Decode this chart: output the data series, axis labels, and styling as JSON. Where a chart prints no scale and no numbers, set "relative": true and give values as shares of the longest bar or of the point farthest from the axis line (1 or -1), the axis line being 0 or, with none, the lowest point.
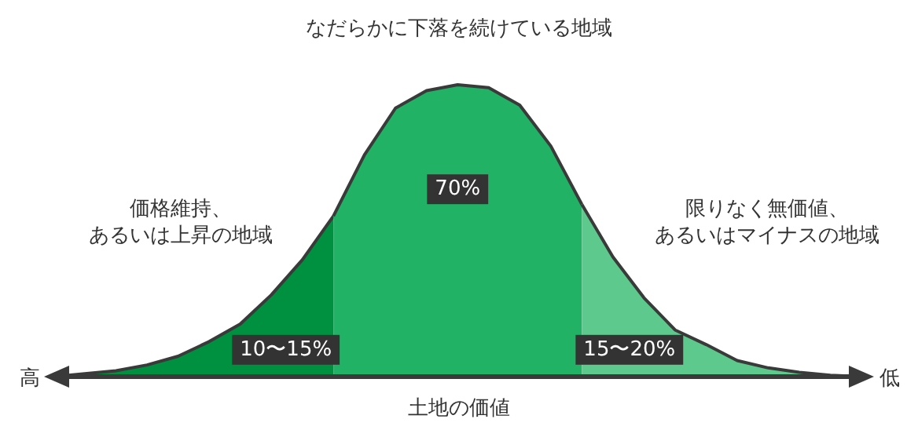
{
  "chart_data": {
    "type": "area",
    "relative": true,
    "title": "なだらかに下落を続けている地域",
    "xlabel": "土地の価値",
    "categories": [
      null,
      null,
      null,
      null,
      null,
      null,
      null,
      null,
      null,
      null,
      null,
      null,
      null,
      null,
      null,
      null,
      null,
      null,
      null,
      null,
      null,
      null,
      null,
      null,
      null,
      null,
      null
    ],
    "series": [
      {
        "name": "10〜15%",
        "color": "#009140",
        "values": [
          0,
          0.01,
          0.02,
          0.04,
          0.07,
          0.12,
          0.18,
          0.28,
          0.4,
          0.55,
          null,
          null,
          null,
          null,
          null,
          null,
          null,
          null,
          null,
          null,
          null,
          null,
          null,
          null,
          null,
          null,
          null
        ]
      },
      {
        "name": "70%",
        "color": "#22b266",
        "values": [
          null,
          null,
          null,
          null,
          null,
          null,
          null,
          null,
          null,
          0.55,
          0.76,
          0.92,
          0.98,
          1,
          0.99,
          0.93,
          0.79,
          0.59,
          null,
          null,
          null,
          null,
          null,
          null,
          null,
          null,
          null
        ]
      },
      {
        "name": "15〜20%",
        "color": "#5ec98c",
        "values": [
          null,
          null,
          null,
          null,
          null,
          null,
          null,
          null,
          null,
          null,
          null,
          null,
          null,
          null,
          null,
          null,
          null,
          0.59,
          0.41,
          0.27,
          0.16,
          0.11,
          0.055,
          0.03,
          0.015,
          0.005,
          0
        ]
      }
    ],
    "annotations": [
      "価格維持、",
      "あるいは上昇の地域",
      "限りなく無価値、",
      "あるいはマイナスの地域",
      "高",
      "低"
    ]
  }
}
